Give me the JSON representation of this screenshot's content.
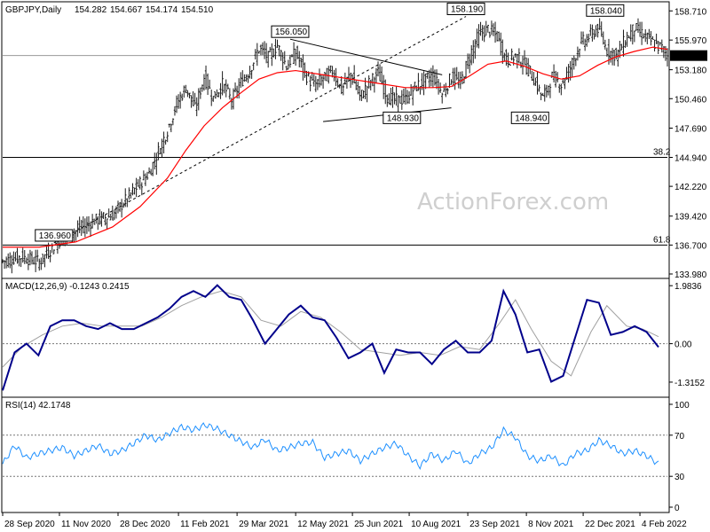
{
  "header": {
    "symbol": "GBPJPY,Daily",
    "open": "154.282",
    "high": "154.667",
    "low": "154.174",
    "close": "154.510"
  },
  "watermark": "ActionForex.com",
  "colors": {
    "background": "#ffffff",
    "candles": "#1a1a1a",
    "ma": "#ff0000",
    "macd": "#00008b",
    "macd_signal": "#a0a0a0",
    "rsi": "#1e90ff",
    "guide": "#000000",
    "price_badge": "#000000"
  },
  "chart_data": [
    {
      "type": "line",
      "name": "price",
      "ylim": [
        133.98,
        158.9
      ],
      "y_ticks": [
        "158.710",
        "155.970",
        "153.180",
        "150.460",
        "147.690",
        "144.940",
        "142.220",
        "139.420",
        "136.700",
        "133.980"
      ],
      "x_ticks": [
        "28 Sep 2020",
        "11 Nov 2020",
        "28 Dec 2020",
        "11 Feb 2021",
        "29 Mar 2021",
        "12 May 2021",
        "25 Jun 2021",
        "10 Aug 2021",
        "23 Sep 2021",
        "8 Nov 2021",
        "22 Dec 2021",
        "4 Feb 2022"
      ],
      "x_tick_pos": [
        0,
        31,
        63,
        96,
        128,
        160,
        191,
        222,
        254,
        286,
        317,
        348
      ],
      "n_days": 364,
      "last_price": "154.510",
      "series": [
        {
          "name": "close",
          "points": [
            [
              0,
              135.2
            ],
            [
              10,
              135.6
            ],
            [
              20,
              135.1
            ],
            [
              30,
              137.0
            ],
            [
              40,
              138.0
            ],
            [
              50,
              139.0
            ],
            [
              60,
              139.5
            ],
            [
              70,
              141.5
            ],
            [
              80,
              143.5
            ],
            [
              90,
              147.5
            ],
            [
              95,
              150.0
            ],
            [
              100,
              151.5
            ],
            [
              105,
              149.5
            ],
            [
              110,
              152.5
            ],
            [
              115,
              150.5
            ],
            [
              120,
              151.8
            ],
            [
              125,
              150.3
            ],
            [
              130,
              152.0
            ],
            [
              135,
              153.2
            ],
            [
              140,
              155.2
            ],
            [
              145,
              154.3
            ],
            [
              150,
              155.5
            ],
            [
              155,
              153.5
            ],
            [
              160,
              154.8
            ],
            [
              165,
              152.8
            ],
            [
              170,
              151.7
            ],
            [
              175,
              152.4
            ],
            [
              180,
              153.1
            ],
            [
              185,
              151.3
            ],
            [
              190,
              152.8
            ],
            [
              195,
              150.6
            ],
            [
              200,
              151.9
            ],
            [
              205,
              152.9
            ],
            [
              210,
              150.6
            ],
            [
              215,
              150.3
            ],
            [
              220,
              150.4
            ],
            [
              225,
              151.5
            ],
            [
              230,
              152.1
            ],
            [
              235,
              152.7
            ],
            [
              240,
              150.9
            ],
            [
              245,
              152.5
            ],
            [
              250,
              151.9
            ],
            [
              255,
              154.5
            ],
            [
              260,
              156.5
            ],
            [
              265,
              157.0
            ],
            [
              270,
              156.3
            ],
            [
              275,
              154.0
            ],
            [
              280,
              154.5
            ],
            [
              285,
              153.7
            ],
            [
              290,
              152.3
            ],
            [
              295,
              150.5
            ],
            [
              300,
              152.5
            ],
            [
              305,
              151.8
            ],
            [
              310,
              153.4
            ],
            [
              315,
              155.5
            ],
            [
              320,
              156.3
            ],
            [
              325,
              157.1
            ],
            [
              330,
              155.0
            ],
            [
              335,
              154.5
            ],
            [
              340,
              156.0
            ],
            [
              345,
              157.1
            ],
            [
              350,
              156.4
            ],
            [
              355,
              155.7
            ],
            [
              360,
              155.2
            ],
            [
              363,
              154.51
            ]
          ]
        },
        {
          "name": "ma",
          "points": [
            [
              0,
              136.5
            ],
            [
              20,
              136.5
            ],
            [
              40,
              137.0
            ],
            [
              60,
              138.4
            ],
            [
              75,
              140.3
            ],
            [
              90,
              143.0
            ],
            [
              100,
              145.6
            ],
            [
              110,
              147.9
            ],
            [
              120,
              149.6
            ],
            [
              130,
              151.0
            ],
            [
              140,
              152.3
            ],
            [
              150,
              152.9
            ],
            [
              160,
              153.1
            ],
            [
              175,
              152.7
            ],
            [
              190,
              152.3
            ],
            [
              205,
              151.9
            ],
            [
              220,
              151.5
            ],
            [
              235,
              151.5
            ],
            [
              245,
              151.6
            ],
            [
              255,
              152.6
            ],
            [
              265,
              153.7
            ],
            [
              275,
              154.0
            ],
            [
              285,
              153.5
            ],
            [
              295,
              152.8
            ],
            [
              305,
              152.3
            ],
            [
              315,
              152.6
            ],
            [
              325,
              153.6
            ],
            [
              335,
              154.4
            ],
            [
              345,
              154.9
            ],
            [
              355,
              155.3
            ],
            [
              363,
              155.1
            ]
          ]
        }
      ],
      "annotations": [
        {
          "text": "156.050",
          "x": 157,
          "y": 156.05
        },
        {
          "text": "158.190",
          "x": 253,
          "y": 158.19
        },
        {
          "text": "158.040",
          "x": 329,
          "y": 158.04
        },
        {
          "text": "148.930",
          "x": 218,
          "y": 149.2
        },
        {
          "text": "148.940",
          "x": 288,
          "y": 149.2
        },
        {
          "text": "136.960",
          "x": 28,
          "y": 136.9
        }
      ],
      "hlines": [
        {
          "y": 144.94,
          "label": "38.2"
        },
        {
          "y": 136.7,
          "label": "61.8"
        }
      ]
    },
    {
      "type": "line",
      "name": "MACD(12,26,9) -0.1243 0.2415",
      "ylim": [
        -1.65,
        2.05
      ],
      "y_ticks": [
        "1.9836",
        "0.00",
        "-1.3152"
      ],
      "series": [
        {
          "name": "macd",
          "points": [
            [
              0,
              -1.6
            ],
            [
              6,
              -0.3
            ],
            [
              12,
              0.0
            ],
            [
              18,
              -0.4
            ],
            [
              24,
              0.6
            ],
            [
              30,
              0.8
            ],
            [
              36,
              0.8
            ],
            [
              42,
              0.6
            ],
            [
              48,
              0.5
            ],
            [
              54,
              0.7
            ],
            [
              60,
              0.5
            ],
            [
              66,
              0.5
            ],
            [
              72,
              0.7
            ],
            [
              78,
              0.9
            ],
            [
              84,
              1.2
            ],
            [
              90,
              1.6
            ],
            [
              96,
              1.8
            ],
            [
              102,
              1.6
            ],
            [
              108,
              2.0
            ],
            [
              114,
              1.6
            ],
            [
              120,
              1.5
            ],
            [
              126,
              0.8
            ],
            [
              132,
              0.0
            ],
            [
              138,
              0.5
            ],
            [
              144,
              1.0
            ],
            [
              150,
              1.3
            ],
            [
              156,
              0.9
            ],
            [
              162,
              0.8
            ],
            [
              168,
              0.2
            ],
            [
              174,
              -0.5
            ],
            [
              180,
              -0.3
            ],
            [
              186,
              0.0
            ],
            [
              192,
              -1.0
            ],
            [
              198,
              -0.2
            ],
            [
              204,
              -0.3
            ],
            [
              210,
              -0.3
            ],
            [
              216,
              -0.7
            ],
            [
              222,
              -0.2
            ],
            [
              228,
              0.1
            ],
            [
              234,
              -0.3
            ],
            [
              240,
              -0.3
            ],
            [
              246,
              0.1
            ],
            [
              252,
              1.8
            ],
            [
              258,
              1.0
            ],
            [
              264,
              -0.3
            ],
            [
              270,
              -0.2
            ],
            [
              276,
              -1.3
            ],
            [
              282,
              -1.1
            ],
            [
              288,
              0.2
            ],
            [
              294,
              1.5
            ],
            [
              300,
              1.4
            ],
            [
              306,
              0.3
            ],
            [
              312,
              0.4
            ],
            [
              318,
              0.6
            ],
            [
              324,
              0.4
            ],
            [
              330,
              -0.12
            ]
          ]
        },
        {
          "name": "signal",
          "points": [
            [
              0,
              -0.8
            ],
            [
              10,
              -0.1
            ],
            [
              20,
              0.3
            ],
            [
              30,
              0.6
            ],
            [
              40,
              0.7
            ],
            [
              50,
              0.6
            ],
            [
              60,
              0.6
            ],
            [
              70,
              0.6
            ],
            [
              80,
              0.9
            ],
            [
              90,
              1.3
            ],
            [
              100,
              1.6
            ],
            [
              110,
              1.8
            ],
            [
              120,
              1.6
            ],
            [
              130,
              0.8
            ],
            [
              140,
              0.6
            ],
            [
              150,
              1.1
            ],
            [
              160,
              0.9
            ],
            [
              170,
              0.4
            ],
            [
              180,
              -0.2
            ],
            [
              190,
              -0.3
            ],
            [
              200,
              -0.4
            ],
            [
              210,
              -0.3
            ],
            [
              220,
              -0.4
            ],
            [
              230,
              -0.1
            ],
            [
              240,
              -0.2
            ],
            [
              250,
              0.7
            ],
            [
              258,
              1.5
            ],
            [
              266,
              0.5
            ],
            [
              276,
              -0.6
            ],
            [
              286,
              -1.1
            ],
            [
              296,
              0.4
            ],
            [
              304,
              1.3
            ],
            [
              314,
              0.6
            ],
            [
              322,
              0.5
            ],
            [
              330,
              0.24
            ]
          ]
        }
      ]
    },
    {
      "type": "line",
      "name": "RSI(14) 42.1748",
      "ylim": [
        0,
        100
      ],
      "y_ticks": [
        "100",
        "70",
        "30",
        "0"
      ],
      "hlines": [
        {
          "y": 70
        },
        {
          "y": 30
        }
      ],
      "series": [
        {
          "name": "rsi",
          "points": [
            [
              0,
              42
            ],
            [
              6,
              60
            ],
            [
              12,
              48
            ],
            [
              18,
              52
            ],
            [
              24,
              55
            ],
            [
              30,
              58
            ],
            [
              36,
              50
            ],
            [
              42,
              55
            ],
            [
              48,
              60
            ],
            [
              54,
              52
            ],
            [
              60,
              55
            ],
            [
              66,
              62
            ],
            [
              72,
              70
            ],
            [
              78,
              65
            ],
            [
              84,
              72
            ],
            [
              90,
              78
            ],
            [
              96,
              75
            ],
            [
              102,
              80
            ],
            [
              108,
              76
            ],
            [
              114,
              70
            ],
            [
              120,
              64
            ],
            [
              126,
              58
            ],
            [
              132,
              66
            ],
            [
              138,
              55
            ],
            [
              144,
              58
            ],
            [
              150,
              62
            ],
            [
              156,
              63
            ],
            [
              162,
              48
            ],
            [
              168,
              52
            ],
            [
              174,
              55
            ],
            [
              180,
              45
            ],
            [
              186,
              52
            ],
            [
              192,
              58
            ],
            [
              198,
              62
            ],
            [
              204,
              50
            ],
            [
              210,
              40
            ],
            [
              216,
              52
            ],
            [
              222,
              45
            ],
            [
              228,
              55
            ],
            [
              234,
              42
            ],
            [
              240,
              52
            ],
            [
              246,
              58
            ],
            [
              252,
              75
            ],
            [
              258,
              68
            ],
            [
              264,
              50
            ],
            [
              270,
              45
            ],
            [
              276,
              50
            ],
            [
              282,
              40
            ],
            [
              288,
              52
            ],
            [
              294,
              55
            ],
            [
              300,
              65
            ],
            [
              306,
              60
            ],
            [
              312,
              52
            ],
            [
              318,
              55
            ],
            [
              324,
              50
            ],
            [
              330,
              42
            ]
          ]
        }
      ]
    }
  ]
}
